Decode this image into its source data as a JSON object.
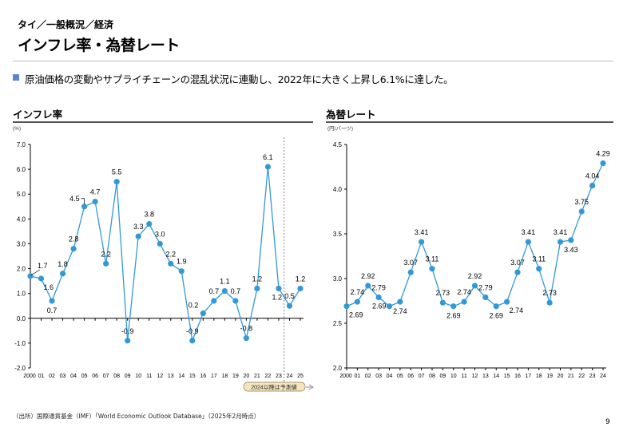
{
  "header": {
    "breadcrumb": "タイ／一般概況／経済",
    "title": "インフレ率・為替レート",
    "lead": "原油価格の変動やサプライチェーンの混乱状況に連動し、2022年に大きく上昇し6.1%に達した。",
    "bullet_color": "#5b86c5"
  },
  "footer": {
    "source": "（出所）国際通貨基金（IMF）「World Economic Outlook Database」（2025年2月時点）",
    "page_number": "9"
  },
  "chart_data": [
    {
      "type": "line",
      "title": "インフレ率",
      "ylabel": "(%)",
      "ylim": [
        -2.0,
        7.0
      ],
      "yticks": [
        "7.0",
        "6.0",
        "5.0",
        "4.0",
        "3.0",
        "2.0",
        "1.0",
        "0.0",
        "-1.0",
        "-2.0"
      ],
      "ytick_values": [
        7,
        6,
        5,
        4,
        3,
        2,
        1,
        0,
        -1,
        -2
      ],
      "categories": [
        "2000",
        "01",
        "02",
        "03",
        "04",
        "05",
        "06",
        "07",
        "08",
        "09",
        "10",
        "11",
        "12",
        "13",
        "14",
        "15",
        "16",
        "17",
        "18",
        "19",
        "20",
        "21",
        "22",
        "23",
        "24",
        "25"
      ],
      "values": [
        1.7,
        1.6,
        0.7,
        1.8,
        2.8,
        4.5,
        4.7,
        2.2,
        5.5,
        -0.9,
        3.3,
        3.8,
        3.0,
        2.2,
        1.9,
        -0.9,
        0.2,
        0.7,
        1.1,
        0.7,
        -0.8,
        1.2,
        6.1,
        1.2,
        0.5,
        1.2
      ],
      "labels": [
        "1.7",
        "1.6",
        "0.7",
        "1.8",
        "2.8",
        "4.5",
        "4.7",
        "2.2",
        "5.5",
        "-0.9",
        "3.3",
        "3.8",
        "3.0",
        "2.2",
        "1.9",
        "-0.9",
        "0.2",
        "0.7",
        "1.1",
        "0.7",
        "-0.8",
        "1.2",
        "6.1",
        "1.2",
        "0.5",
        "1.2"
      ],
      "forecast_note": "2024以降は予測値",
      "forecast_from": "24",
      "color": "#3399d6",
      "grid": false
    },
    {
      "type": "line",
      "title": "為替レート",
      "ylabel": "(円/バーツ)",
      "ylim": [
        2.0,
        4.5
      ],
      "yticks": [
        "4.5",
        "4.0",
        "3.5",
        "3.0",
        "2.5",
        "2.0"
      ],
      "ytick_values": [
        4.5,
        4.0,
        3.5,
        3.0,
        2.5,
        2.0
      ],
      "categories": [
        "2000",
        "01",
        "02",
        "03",
        "04",
        "05",
        "06",
        "07",
        "08",
        "09",
        "10",
        "11",
        "12",
        "13",
        "14",
        "15",
        "16",
        "17",
        "18",
        "19",
        "20",
        "21",
        "22",
        "23",
        "24"
      ],
      "values": [
        2.69,
        2.74,
        2.92,
        2.79,
        2.69,
        2.74,
        3.07,
        3.41,
        3.11,
        2.73,
        2.69,
        2.74,
        2.92,
        2.79,
        2.69,
        2.74,
        3.07,
        3.41,
        3.11,
        2.73,
        3.41,
        3.43,
        3.75,
        4.04,
        4.29
      ],
      "labels": [
        "2.69",
        "2.74",
        "2.92",
        "2.79",
        "2.69",
        "2.74",
        "3.07",
        "3.41",
        "3.11",
        "2.73",
        "2.69",
        "2.74",
        "2.92",
        "2.79",
        "2.69",
        "2.74",
        "3.07",
        "3.41",
        "3.11",
        "2.73",
        "3.41",
        "3.43",
        "3.75",
        "4.04",
        "4.29"
      ],
      "color": "#3399d6",
      "grid": false
    }
  ]
}
